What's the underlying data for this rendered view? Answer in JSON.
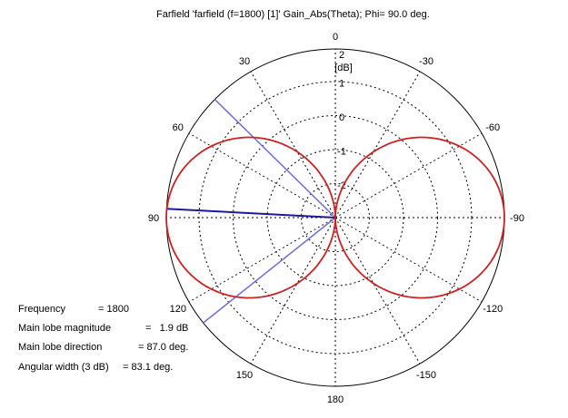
{
  "title": "Farfield 'farfield (f=1800) [1]' Gain_Abs(Theta); Phi=  90.0 deg.",
  "chart_data": {
    "type": "polar",
    "unit_label": "[dB]",
    "radial_ticks": [
      2,
      1,
      0,
      -1,
      -2
    ],
    "angle_labels": [
      {
        "angle": 0,
        "label": "0"
      },
      {
        "angle": 30,
        "label": "30"
      },
      {
        "angle": 60,
        "label": "60"
      },
      {
        "angle": 90,
        "label": "90"
      },
      {
        "angle": 120,
        "label": "120"
      },
      {
        "angle": 150,
        "label": "150"
      },
      {
        "angle": 180,
        "label": "180"
      },
      {
        "angle": -150,
        "label": "-150"
      },
      {
        "angle": -120,
        "label": "-120"
      },
      {
        "angle": -90,
        "label": "-90"
      },
      {
        "angle": -60,
        "label": "-60"
      },
      {
        "angle": -30,
        "label": "-30"
      }
    ],
    "main_lobe_direction_deg": 87.0,
    "main_lobe_magnitude_db": 1.9,
    "angular_width_3db_deg": 83.1,
    "beam_edges_deg": [
      45.5,
      128.6
    ],
    "series_color": "#cc2222",
    "marker_color": "#6a6ad8",
    "main_lobe_marker_color": "#1a1a9a"
  },
  "info": {
    "frequency_label": "Frequency",
    "frequency_value": "= 1800",
    "magnitude_label": "Main lobe magnitude",
    "magnitude_value": "=   1.9 dB",
    "direction_label": "Main lobe direction",
    "direction_value": "= 87.0 deg.",
    "width_label": "Angular width (3 dB)",
    "width_value": "= 83.1 deg."
  }
}
